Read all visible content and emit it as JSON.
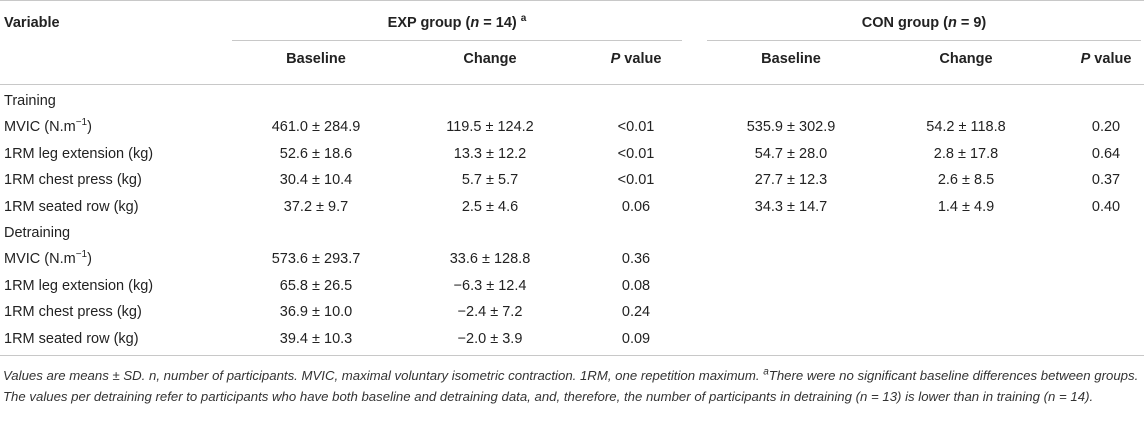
{
  "header": {
    "variable": "Variable",
    "exp_group": {
      "label": "EXP group (",
      "n": "n",
      "eq": " = 14)",
      "sup": "a"
    },
    "con_group": {
      "label": "CON group (",
      "n": "n",
      "eq": " = 9)"
    },
    "sub": {
      "baseline": "Baseline",
      "change": "Change",
      "p_italic": "P",
      "p_rest": " value"
    }
  },
  "sections": [
    {
      "title": "Training",
      "rows": [
        {
          "label_pre": "MVIC (N.m",
          "label_sup": "−1",
          "label_post": ")",
          "exp_baseline": "461.0 ± 284.9",
          "exp_change": "119.5 ± 124.2",
          "exp_p": "<0.01",
          "con_baseline": "535.9 ± 302.9",
          "con_change": "54.2 ± 118.8",
          "con_p": "0.20"
        },
        {
          "label_pre": "1RM leg extension (kg)",
          "label_sup": "",
          "label_post": "",
          "exp_baseline": "52.6 ± 18.6",
          "exp_change": "13.3 ± 12.2",
          "exp_p": "<0.01",
          "con_baseline": "54.7 ± 28.0",
          "con_change": "2.8 ± 17.8",
          "con_p": "0.64"
        },
        {
          "label_pre": "1RM chest press (kg)",
          "label_sup": "",
          "label_post": "",
          "exp_baseline": "30.4 ± 10.4",
          "exp_change": "5.7 ± 5.7",
          "exp_p": "<0.01",
          "con_baseline": "27.7 ± 12.3",
          "con_change": "2.6 ± 8.5",
          "con_p": "0.37"
        },
        {
          "label_pre": "1RM seated row (kg)",
          "label_sup": "",
          "label_post": "",
          "exp_baseline": "37.2 ± 9.7",
          "exp_change": "2.5 ± 4.6",
          "exp_p": "0.06",
          "con_baseline": "34.3 ± 14.7",
          "con_change": "1.4 ± 4.9",
          "con_p": "0.40"
        }
      ]
    },
    {
      "title": "Detraining",
      "rows": [
        {
          "label_pre": "MVIC (N.m",
          "label_sup": "−1",
          "label_post": ")",
          "exp_baseline": "573.6 ± 293.7",
          "exp_change": "33.6 ± 128.8",
          "exp_p": "0.36",
          "con_baseline": "",
          "con_change": "",
          "con_p": ""
        },
        {
          "label_pre": "1RM leg extension (kg)",
          "label_sup": "",
          "label_post": "",
          "exp_baseline": "65.8 ± 26.5",
          "exp_change": "−6.3 ± 12.4",
          "exp_p": "0.08",
          "con_baseline": "",
          "con_change": "",
          "con_p": ""
        },
        {
          "label_pre": "1RM chest press (kg)",
          "label_sup": "",
          "label_post": "",
          "exp_baseline": "36.9 ± 10.0",
          "exp_change": "−2.4 ± 7.2",
          "exp_p": "0.24",
          "con_baseline": "",
          "con_change": "",
          "con_p": ""
        },
        {
          "label_pre": "1RM seated row (kg)",
          "label_sup": "",
          "label_post": "",
          "exp_baseline": "39.4 ± 10.3",
          "exp_change": "−2.0 ± 3.9",
          "exp_p": "0.09",
          "con_baseline": "",
          "con_change": "",
          "con_p": ""
        }
      ]
    }
  ],
  "caption": {
    "part1": "Values are means ± SD. ",
    "n_symbol": "n",
    "part2": ", number of participants. MVIC, maximal voluntary isometric contraction. 1RM, one repetition maximum. ",
    "sup": "a",
    "part3": "There were no significant baseline differences between groups. The values per detraining refer to participants who have both baseline and detraining data, and, therefore, the number of participants in detraining (",
    "n_symbol2": "n",
    "part4": " = 13) is lower than in training (",
    "n_symbol3": "n",
    "part5": " = 14)."
  }
}
